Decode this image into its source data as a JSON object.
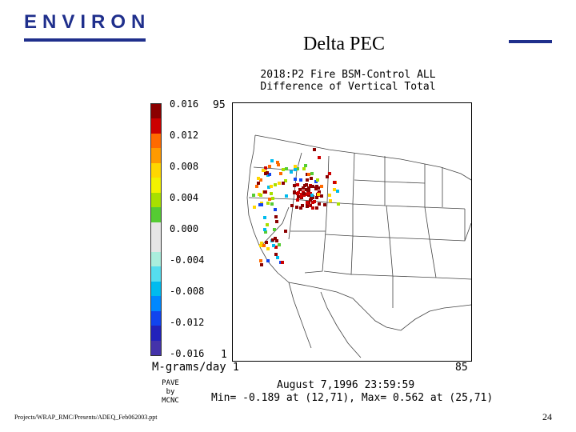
{
  "logo": {
    "text": "ENVIRON"
  },
  "slide_title": "Delta PEC",
  "plot": {
    "title_line1": "2018:P2 Fire BSM-Control ALL",
    "title_line2": "Difference of Vertical Total",
    "units": "M-grams/day",
    "y_top": "95",
    "y_bottom": "1",
    "x_left": "1",
    "x_right": "85",
    "timestamp": "August 7,1996 23:59:59",
    "minmax": "Min= -0.189 at (12,71), Max=  0.562 at (25,71)",
    "credit_line1": "PAVE",
    "credit_line2": "by",
    "credit_line3": "MCNC"
  },
  "colorbar": {
    "labels": [
      "0.016",
      "0.012",
      "0.008",
      "0.004",
      "0.000",
      "-0.004",
      "-0.008",
      "-0.012",
      "-0.016"
    ],
    "colors": [
      "#8b0000",
      "#cc0000",
      "#ff6a00",
      "#ff9a00",
      "#ffd700",
      "#f2f200",
      "#a8e000",
      "#55cc33",
      "#e6e6e6",
      "#e6e6e6",
      "#aaeedd",
      "#55ddee",
      "#00bbee",
      "#0088ff",
      "#1144ee",
      "#2222bb",
      "#4433aa"
    ]
  },
  "footer": "Projects/WRAP_RMC/Presents/ADEQ_Feb062003.ppt",
  "page_number": "24"
}
